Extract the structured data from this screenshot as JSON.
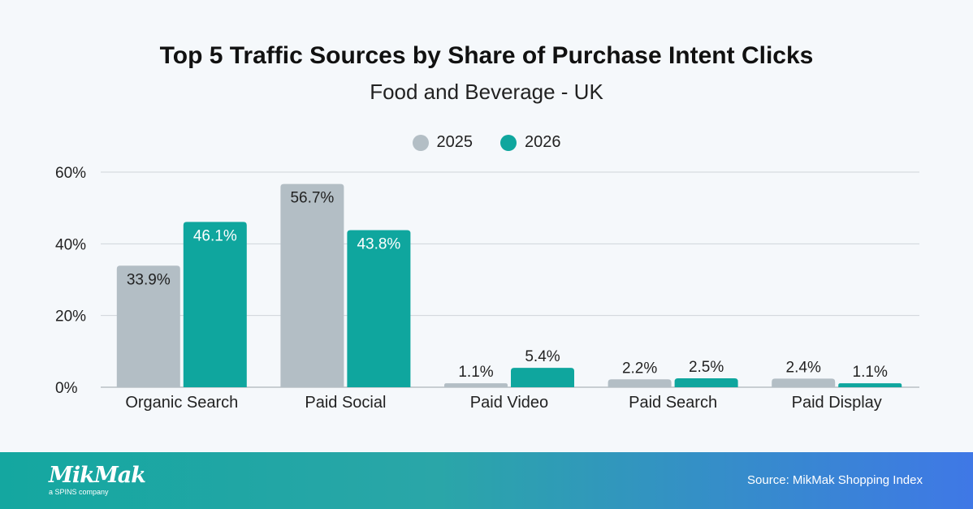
{
  "chart_data": {
    "type": "bar",
    "title": "Top 5 Traffic Sources by Share of Purchase Intent Clicks",
    "subtitle": "Food and Beverage - UK",
    "categories": [
      "Organic Search",
      "Paid Social",
      "Paid Video",
      "Paid Search",
      "Paid Display"
    ],
    "series": [
      {
        "name": "2025",
        "values": [
          33.9,
          56.7,
          1.1,
          2.2,
          2.4
        ],
        "labels": [
          "33.9%",
          "56.7%",
          "1.1%",
          "2.2%",
          "2.4%"
        ],
        "color": "#b3bec5"
      },
      {
        "name": "2026",
        "values": [
          46.1,
          43.8,
          5.4,
          2.5,
          1.1
        ],
        "labels": [
          "46.1%",
          "43.8%",
          "5.4%",
          "2.5%",
          "1.1%"
        ],
        "color": "#0fa69e"
      }
    ],
    "ylim": [
      0,
      60
    ],
    "yticks": [
      0,
      20,
      40,
      60
    ],
    "ytick_labels": [
      "0%",
      "20%",
      "40%",
      "60%"
    ],
    "grid": true,
    "legend": "top-center"
  },
  "footer": {
    "logo_text": "MikMak",
    "logo_tagline": "a SPINS company",
    "source": "Source: MikMak Shopping Index"
  }
}
